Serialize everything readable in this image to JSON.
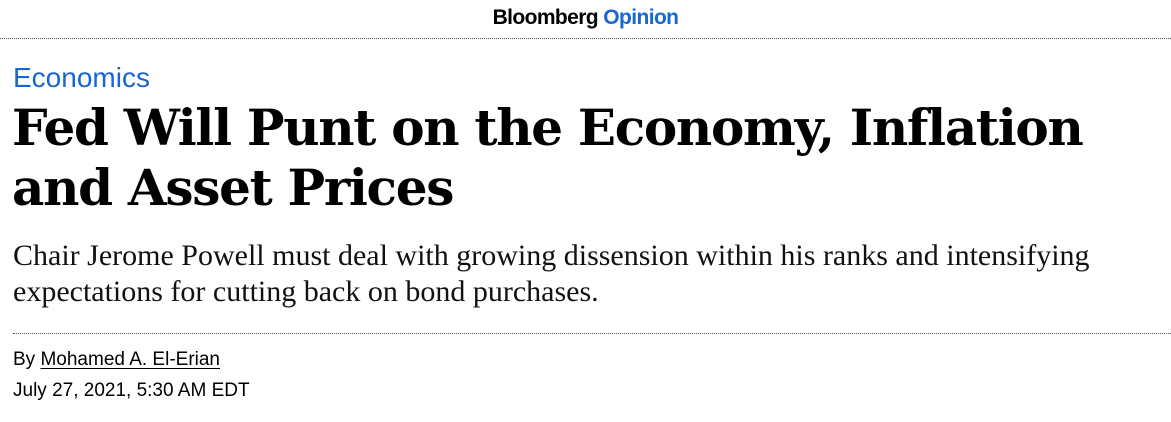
{
  "header": {
    "brand_main": "Bloomberg",
    "brand_section": "Opinion",
    "brand_section_color": "#1766d1"
  },
  "article": {
    "category": "Economics",
    "headline": "Fed Will Punt on the Economy, Inflation and Asset Prices",
    "dek": "Chair Jerome Powell must deal with growing dissension within his ranks and intensifying expectations for cutting back on bond purchases.",
    "byline_prefix": "By",
    "author": "Mohamed A. El-Erian",
    "published": "July 27, 2021, 5:30 AM EDT"
  }
}
